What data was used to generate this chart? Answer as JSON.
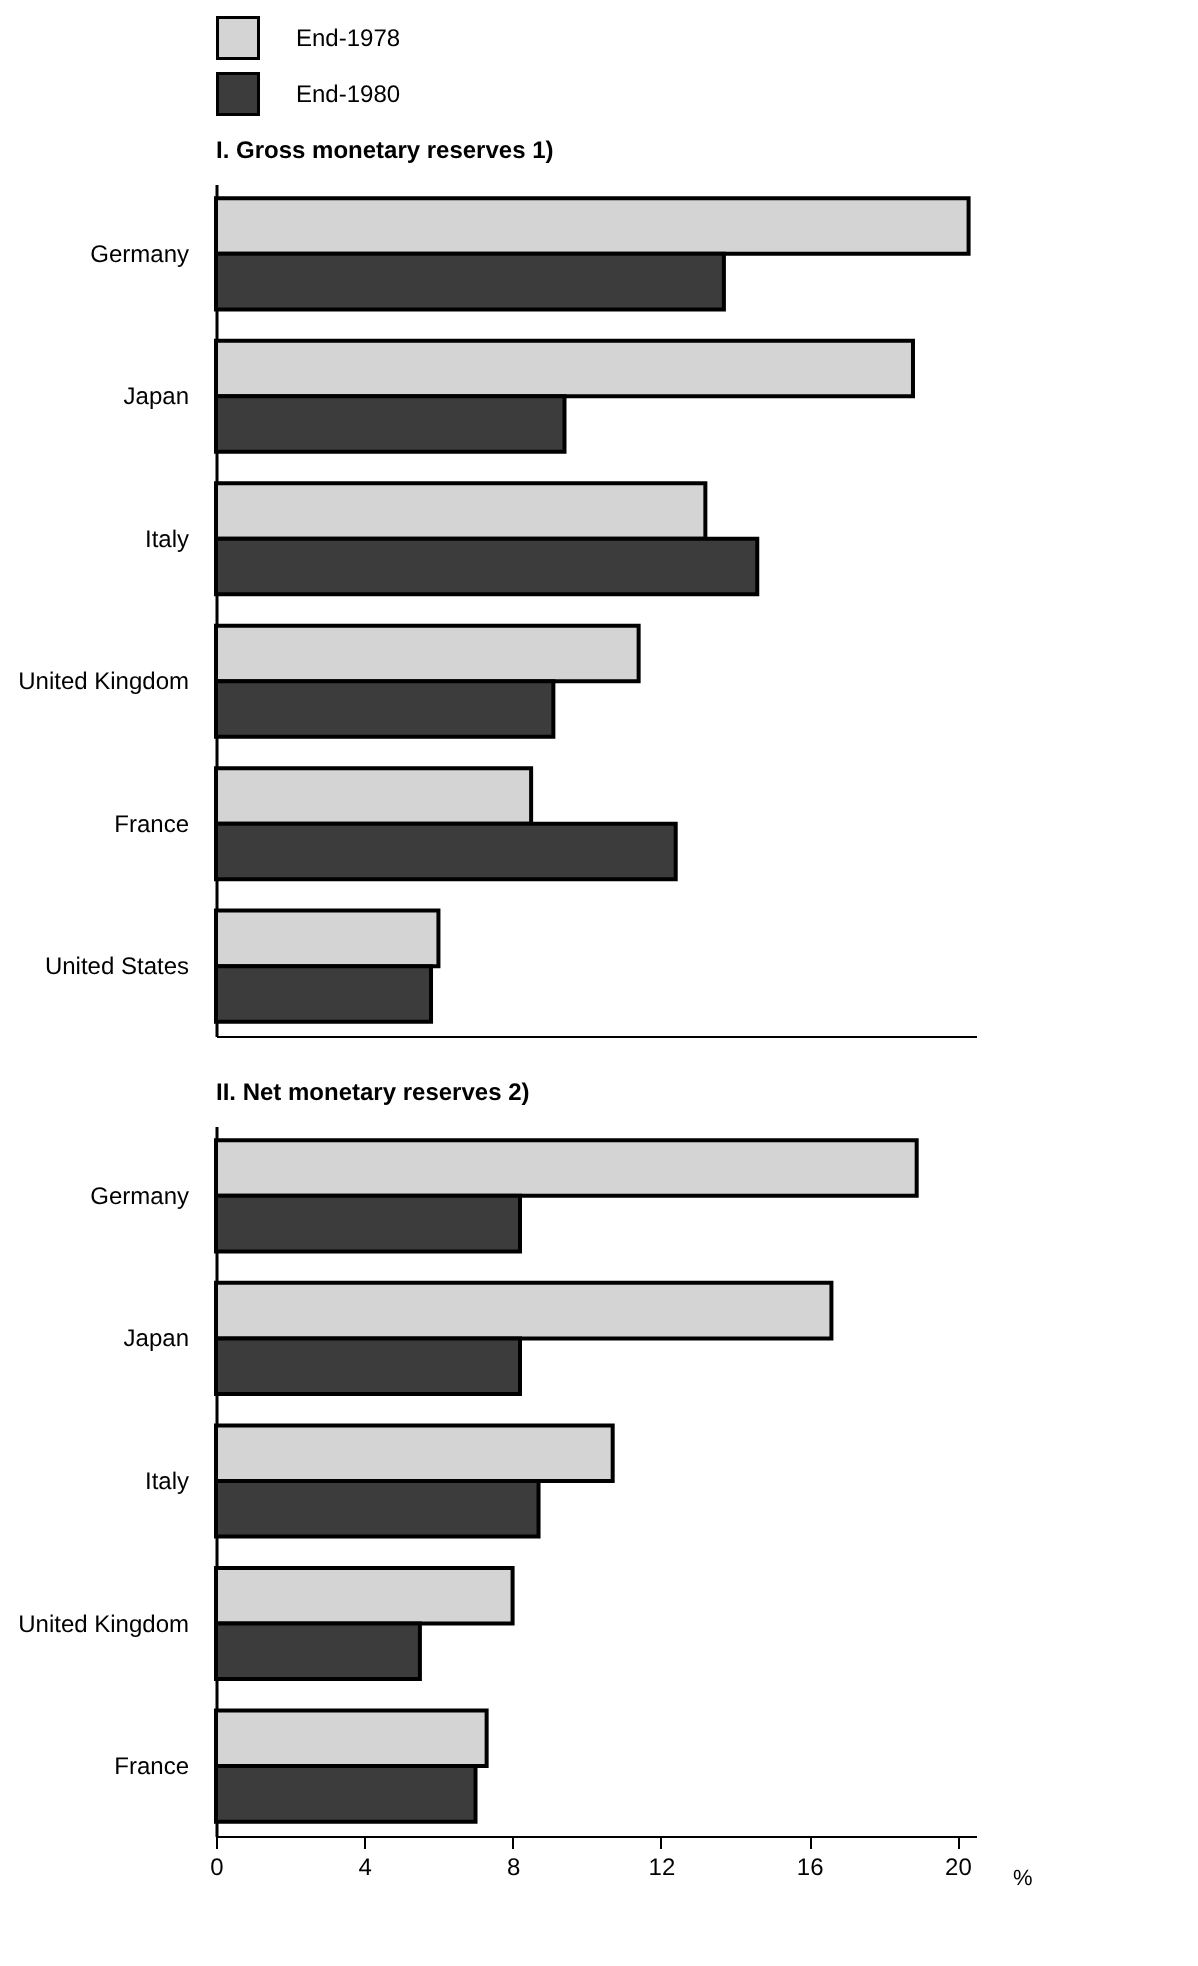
{
  "chart_data": [
    {
      "type": "bar",
      "orientation": "horizontal",
      "title": "I. Gross monetary reserves 1)",
      "categories": [
        "Germany",
        "Japan",
        "Italy",
        "United Kingdom",
        "France",
        "United States"
      ],
      "series": [
        {
          "name": "End-1978",
          "color": "#d4d4d4",
          "values": [
            20.3,
            18.8,
            13.2,
            11.4,
            8.5,
            6.0
          ]
        },
        {
          "name": "End-1980",
          "color": "#3c3c3c",
          "values": [
            13.7,
            9.4,
            14.6,
            9.1,
            12.4,
            5.8
          ]
        }
      ],
      "xlim": [
        0,
        20.5
      ],
      "xticks": [
        0,
        4,
        8,
        12,
        16,
        20
      ],
      "tick_labels": "y",
      "legend": "top"
    },
    {
      "type": "bar",
      "orientation": "horizontal",
      "title": "II. Net monetary reserves 2)",
      "xlabel": "%",
      "categories": [
        "Germany",
        "Japan",
        "Italy",
        "United Kingdom",
        "France"
      ],
      "series": [
        {
          "name": "End-1978",
          "color": "#d4d4d4",
          "values": [
            18.9,
            16.6,
            10.7,
            8.0,
            7.3
          ]
        },
        {
          "name": "End-1980",
          "color": "#3c3c3c",
          "values": [
            8.2,
            8.2,
            8.7,
            5.5,
            7.0
          ]
        }
      ],
      "xlim": [
        0,
        20.5
      ],
      "xticks": [
        0,
        4,
        8,
        12,
        16,
        20
      ]
    }
  ]
}
